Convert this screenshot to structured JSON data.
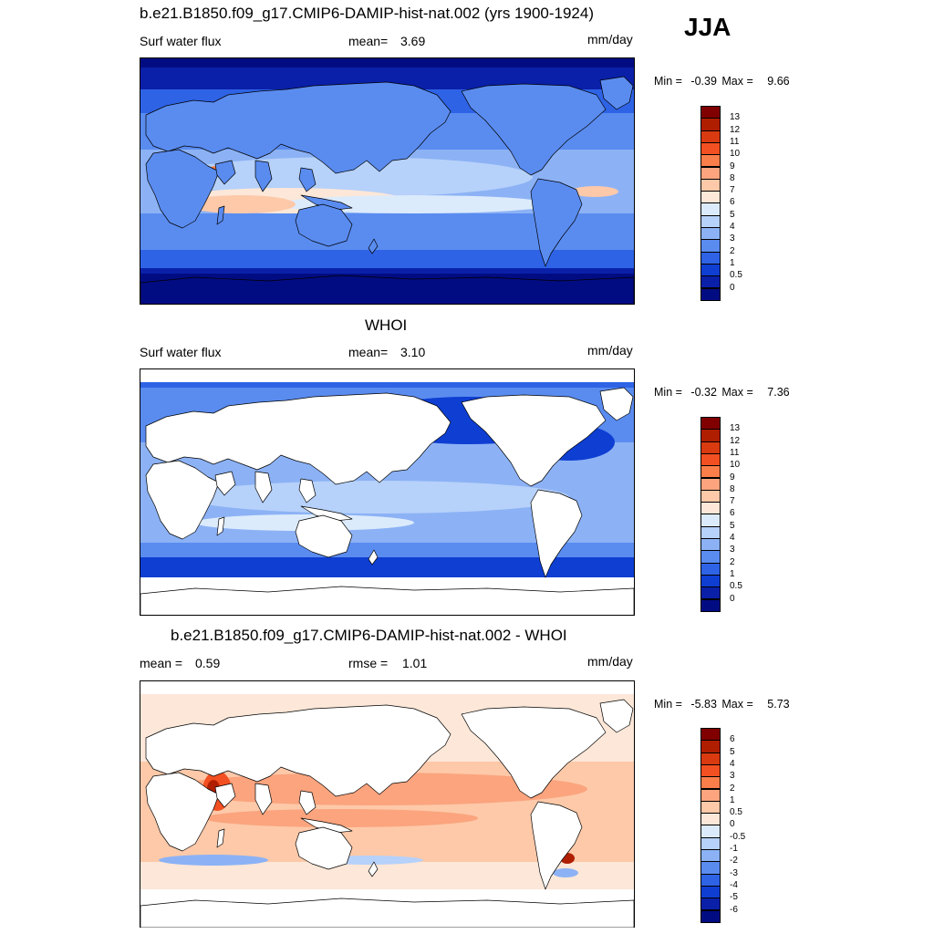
{
  "season": "JJA",
  "panels": [
    {
      "title": "b.e21.B1850.f09_g17.CMIP6-DAMIP-hist-nat.002 (yrs 1900-1924)",
      "left_label": "Surf water flux",
      "mid_label": "mean=",
      "mid_value": "3.69",
      "units": "mm/day",
      "min_label": "Min =",
      "min_value": "-0.39",
      "max_label": "Max =",
      "max_value": "9.66",
      "land_masked": false,
      "levels": [
        "13",
        "12",
        "11",
        "10",
        "9",
        "8",
        "7",
        "6",
        "5",
        "4",
        "3",
        "2",
        "1",
        "0.5",
        "0"
      ],
      "colors": [
        "#800000",
        "#B01E00",
        "#D93A10",
        "#F25022",
        "#F97E4A",
        "#FBA47E",
        "#FDC9A9",
        "#FCE7D8",
        "#DCEBFC",
        "#B6D1FA",
        "#8CB2F5",
        "#5A8CF0",
        "#2E63E6",
        "#0E3ED2",
        "#0A20A8",
        "#020C82"
      ]
    },
    {
      "title": "WHOI",
      "left_label": "Surf water flux",
      "mid_label": "mean=",
      "mid_value": "3.10",
      "units": "mm/day",
      "min_label": "Min =",
      "min_value": "-0.32",
      "max_label": "Max =",
      "max_value": "7.36",
      "land_masked": true,
      "levels": [
        "13",
        "12",
        "11",
        "10",
        "9",
        "8",
        "7",
        "6",
        "5",
        "4",
        "3",
        "2",
        "1",
        "0.5",
        "0"
      ],
      "colors": [
        "#800000",
        "#B01E00",
        "#D93A10",
        "#F25022",
        "#F97E4A",
        "#FBA47E",
        "#FDC9A9",
        "#FCE7D8",
        "#DCEBFC",
        "#B6D1FA",
        "#8CB2F5",
        "#5A8CF0",
        "#2E63E6",
        "#0E3ED2",
        "#0A20A8",
        "#020C82"
      ]
    },
    {
      "title": "b.e21.B1850.f09_g17.CMIP6-DAMIP-hist-nat.002 - WHOI",
      "left_label": "mean =",
      "left_value": "0.59",
      "mid_label": "rmse =",
      "mid_value": "1.01",
      "units": "mm/day",
      "min_label": "Min =",
      "min_value": "-5.83",
      "max_label": "Max =",
      "max_value": "5.73",
      "land_masked": true,
      "levels": [
        "6",
        "5",
        "4",
        "3",
        "2",
        "1",
        "0.5",
        "0",
        "-0.5",
        "-1",
        "-2",
        "-3",
        "-4",
        "-5",
        "-6"
      ],
      "colors": [
        "#800000",
        "#B01E00",
        "#D93A10",
        "#F25022",
        "#F97E4A",
        "#FBA47E",
        "#FDC9A9",
        "#FCE7D8",
        "#DCEBFC",
        "#B6D1FA",
        "#8CB2F5",
        "#5A8CF0",
        "#2E63E6",
        "#0E3ED2",
        "#0A20A8",
        "#020C82"
      ]
    }
  ]
}
